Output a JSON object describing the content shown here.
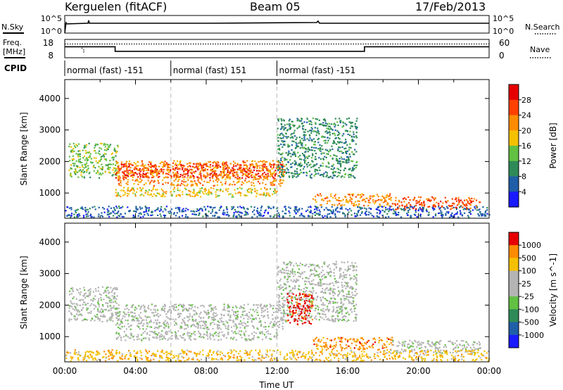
{
  "header": {
    "station": "Kerguelen (fitACF)",
    "beam": "Beam 05",
    "date": "17/Feb/2013"
  },
  "noise_panel": {
    "left_label": "N.Sky",
    "right_label": "N.Search",
    "yticks": [
      "10^5",
      "10^0"
    ]
  },
  "freq_panel": {
    "left_label_line1": "Freq.",
    "left_label_line2": "[MHz]",
    "left_ticks": [
      "18",
      "8"
    ],
    "right_ticks": [
      "60",
      "0"
    ],
    "right_label": "Nave",
    "freq_line": [
      {
        "t": 0,
        "f": 14
      },
      {
        "t": 2.85,
        "f": 14
      },
      {
        "t": 2.85,
        "f": 11.5
      },
      {
        "t": 16.95,
        "f": 11.5
      },
      {
        "t": 16.95,
        "f": 14
      },
      {
        "t": 24,
        "f": 14
      }
    ],
    "nave_level": 45
  },
  "cpid": {
    "label": "CPID",
    "segments": [
      {
        "start": 0,
        "end": 6,
        "text": "normal (fast) -151"
      },
      {
        "start": 6,
        "end": 12,
        "text": "normal (fast) 151"
      },
      {
        "start": 12,
        "end": 24,
        "text": "normal (fast) -151"
      }
    ]
  },
  "chart_data": [
    {
      "type": "heatmap",
      "name": "power",
      "ylabel": "Slant Range [km]",
      "xlim": [
        0,
        24
      ],
      "ylim": [
        200,
        4600
      ],
      "yticks": [
        "1000",
        "2000",
        "3000",
        "4000"
      ],
      "colorbar": {
        "label": "Power [dB]",
        "ticks": [
          "28",
          "24",
          "20",
          "16",
          "12",
          "8",
          "4"
        ],
        "colors": [
          "#1a1aff",
          "#1f5fa8",
          "#2e8b57",
          "#62c042",
          "#f5c000",
          "#ff8c00",
          "#ff4000",
          "#e60000"
        ]
      },
      "regions": [
        {
          "t0": 0.2,
          "t1": 3.0,
          "r0": 1500,
          "r1": 2600,
          "c": 3
        },
        {
          "t0": 2.85,
          "t1": 12.4,
          "r0": 1500,
          "r1": 1950,
          "c": 7
        },
        {
          "t0": 2.85,
          "t1": 12.4,
          "r0": 1250,
          "r1": 2050,
          "c": 5
        },
        {
          "t0": 2.85,
          "t1": 12.0,
          "r0": 900,
          "r1": 1200,
          "c": 4
        },
        {
          "t0": 12.0,
          "t1": 16.5,
          "r0": 1500,
          "r1": 3400,
          "c": 2
        },
        {
          "t0": 14.0,
          "t1": 18.5,
          "r0": 600,
          "r1": 1000,
          "c": 5
        },
        {
          "t0": 18.5,
          "t1": 23.5,
          "r0": 500,
          "r1": 900,
          "c": 6
        },
        {
          "t0": 0.0,
          "t1": 24.0,
          "r0": 250,
          "r1": 600,
          "c": 1
        }
      ]
    },
    {
      "type": "heatmap",
      "name": "velocity",
      "ylabel": "Slant Range [km]",
      "xlim": [
        0,
        24
      ],
      "ylim": [
        200,
        4600
      ],
      "yticks": [
        "1000",
        "2000",
        "3000",
        "4000"
      ],
      "xticks": [
        "00:00",
        "04:00",
        "08:00",
        "12:00",
        "16:00",
        "20:00",
        "00:00"
      ],
      "xlabel": "Time UT",
      "colorbar": {
        "label": "Velocity [m s^-1]",
        "ticks": [
          "1000",
          "500",
          "100",
          "25",
          "-25",
          "-100",
          "-500",
          "-1000"
        ],
        "colors": [
          "#1a1aff",
          "#1f5fa8",
          "#2e8b57",
          "#62c042",
          "#b4b4b4",
          "#b4b4b4",
          "#f5c000",
          "#ff8c00",
          "#e60000"
        ]
      },
      "regions": [
        {
          "t0": 0.2,
          "t1": 3.0,
          "r0": 1500,
          "r1": 2600,
          "c": 4
        },
        {
          "t0": 2.85,
          "t1": 12.4,
          "r0": 1250,
          "r1": 2050,
          "c": 4
        },
        {
          "t0": 2.85,
          "t1": 12.0,
          "r0": 900,
          "r1": 1200,
          "c": 4
        },
        {
          "t0": 12.0,
          "t1": 16.5,
          "r0": 1500,
          "r1": 3400,
          "c": 4
        },
        {
          "t0": 12.5,
          "t1": 14.0,
          "r0": 1400,
          "r1": 2400,
          "c": 8
        },
        {
          "t0": 14.0,
          "t1": 18.5,
          "r0": 600,
          "r1": 1000,
          "c": 7
        },
        {
          "t0": 18.5,
          "t1": 23.5,
          "r0": 500,
          "r1": 900,
          "c": 4
        },
        {
          "t0": 0.0,
          "t1": 24.0,
          "r0": 250,
          "r1": 600,
          "c": 6
        }
      ]
    }
  ]
}
